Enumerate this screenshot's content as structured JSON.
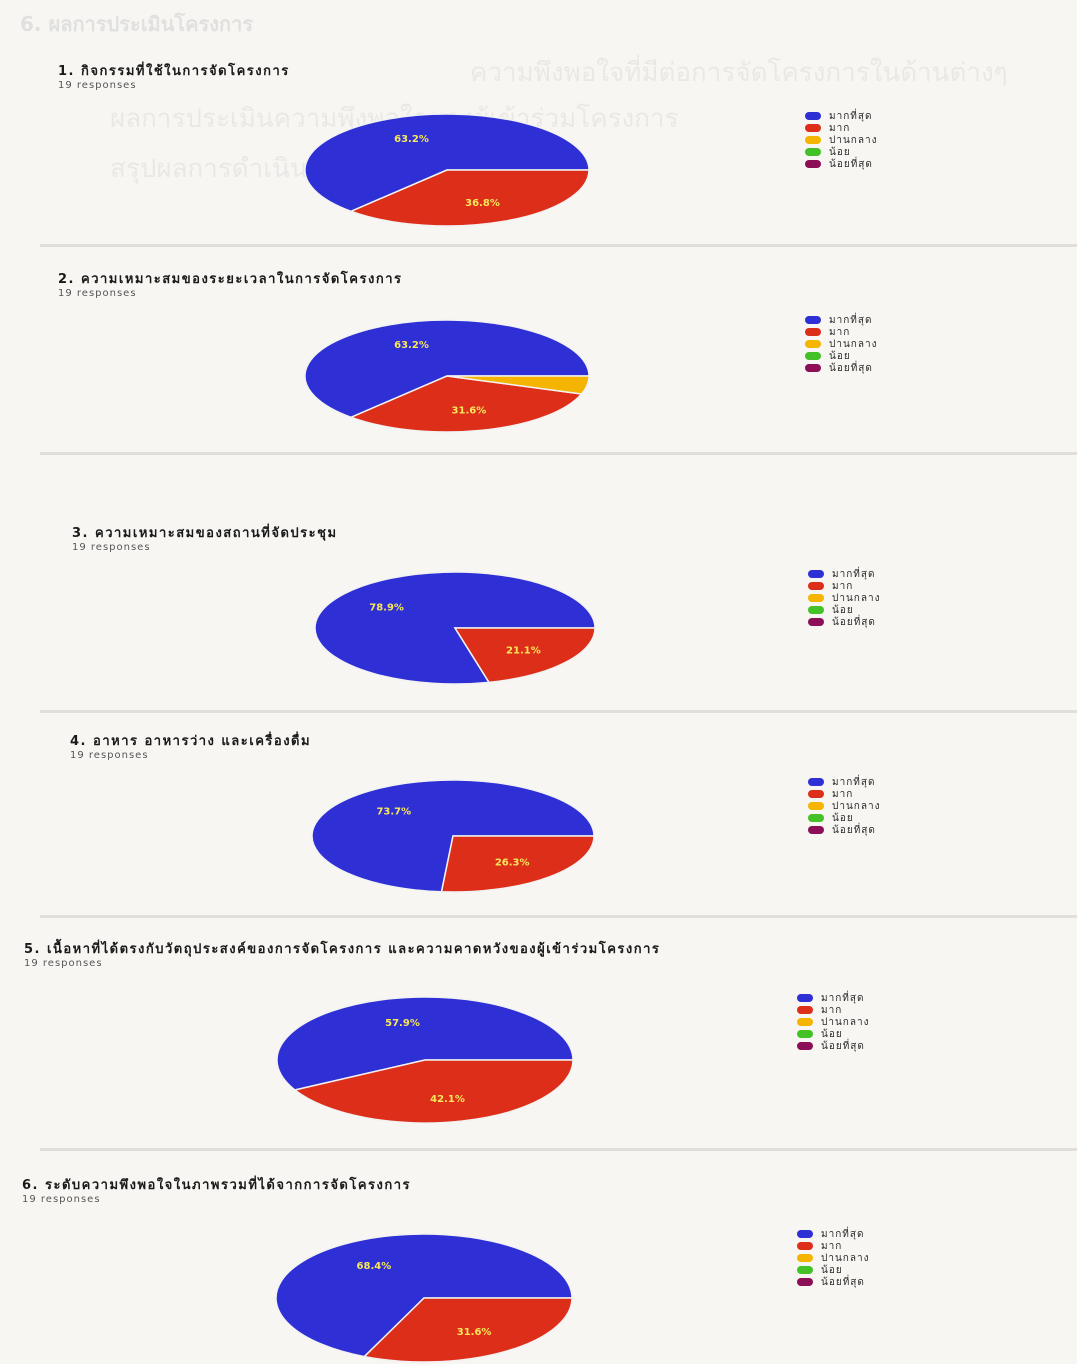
{
  "page": {
    "heading": "6. ผลการประเมินโครงการ"
  },
  "bleed_lines": [
    "ความพึงพอใจที่มีต่อการจัดโครงการในด้านต่างๆ",
    "ผลการประเมินความพึงพอใจของผู้เข้าร่วมโครงการ",
    "สรุปผลการดำเนินโครงการ"
  ],
  "legend_labels": [
    "มากที่สุด",
    "มาก",
    "ปานกลาง",
    "น้อย",
    "น้อยที่สุด"
  ],
  "colors": {
    "most": "#2e2fd4",
    "much": "#dd2e1a",
    "moderate": "#f4b400",
    "little": "#43c126",
    "least": "#8b0e57",
    "slice_label": "#f7e85a"
  },
  "questions": [
    {
      "number": "1.",
      "title": "กิจกรรมที่ใช้ในการจัดโครงการ",
      "responses": "19 responses",
      "chart_data": {
        "type": "pie",
        "title": "กิจกรรมที่ใช้ในการจัดโครงการ",
        "categories": [
          "มากที่สุด",
          "มาก",
          "ปานกลาง",
          "น้อย",
          "น้อยที่สุด"
        ],
        "values": [
          63.2,
          36.8,
          0,
          0,
          0
        ],
        "labels": [
          "63.2%",
          "36.8%",
          "",
          "",
          ""
        ],
        "legend_position": "right"
      }
    },
    {
      "number": "2.",
      "title": "ความเหมาะสมของระยะเวลาในการจัดโครงการ",
      "responses": "19 responses",
      "chart_data": {
        "type": "pie",
        "title": "ความเหมาะสมของระยะเวลาในการจัดโครงการ",
        "categories": [
          "มากที่สุด",
          "มาก",
          "ปานกลาง",
          "น้อย",
          "น้อยที่สุด"
        ],
        "values": [
          63.2,
          31.6,
          5.2,
          0,
          0
        ],
        "labels": [
          "63.2%",
          "31.6%",
          "",
          "",
          ""
        ],
        "legend_position": "right"
      }
    },
    {
      "number": "3.",
      "title": "ความเหมาะสมของสถานที่จัดประชุม",
      "responses": "19 responses",
      "chart_data": {
        "type": "pie",
        "title": "ความเหมาะสมของสถานที่จัดประชุม",
        "categories": [
          "มากที่สุด",
          "มาก",
          "ปานกลาง",
          "น้อย",
          "น้อยที่สุด"
        ],
        "values": [
          78.9,
          21.1,
          0,
          0,
          0
        ],
        "labels": [
          "78.9%",
          "21.1%",
          "",
          "",
          ""
        ],
        "legend_position": "right"
      }
    },
    {
      "number": "4.",
      "title": "อาหาร อาหารว่าง และเครื่องดื่ม",
      "responses": "19 responses",
      "chart_data": {
        "type": "pie",
        "title": "อาหาร อาหารว่าง และเครื่องดื่ม",
        "categories": [
          "มากที่สุด",
          "มาก",
          "ปานกลาง",
          "น้อย",
          "น้อยที่สุด"
        ],
        "values": [
          73.7,
          26.3,
          0,
          0,
          0
        ],
        "labels": [
          "73.7%",
          "26.3%",
          "",
          "",
          ""
        ],
        "legend_position": "right"
      }
    },
    {
      "number": "5.",
      "title": "เนื้อหาที่ได้ตรงกับวัตถุประสงค์ของการจัดโครงการ และความคาดหวังของผู้เข้าร่วมโครงการ",
      "responses": "19 responses",
      "chart_data": {
        "type": "pie",
        "title": "เนื้อหาที่ได้ตรงกับวัตถุประสงค์ของการจัดโครงการ และความคาดหวังของผู้เข้าร่วมโครงการ",
        "categories": [
          "มากที่สุด",
          "มาก",
          "ปานกลาง",
          "น้อย",
          "น้อยที่สุด"
        ],
        "values": [
          57.9,
          42.1,
          0,
          0,
          0
        ],
        "labels": [
          "57.9%",
          "42.1%",
          "",
          "",
          ""
        ],
        "legend_position": "right"
      }
    },
    {
      "number": "6.",
      "title": "ระดับความพึงพอใจในภาพรวมที่ได้จากการจัดโครงการ",
      "responses": "19 responses",
      "chart_data": {
        "type": "pie",
        "title": "ระดับความพึงพอใจในภาพรวมที่ได้จากการจัดโครงการ",
        "categories": [
          "มากที่สุด",
          "มาก",
          "ปานกลาง",
          "น้อย",
          "น้อยที่สุด"
        ],
        "values": [
          68.4,
          31.6,
          0,
          0,
          0
        ],
        "labels": [
          "68.4%",
          "31.6%",
          "",
          "",
          ""
        ],
        "legend_position": "right"
      }
    }
  ]
}
